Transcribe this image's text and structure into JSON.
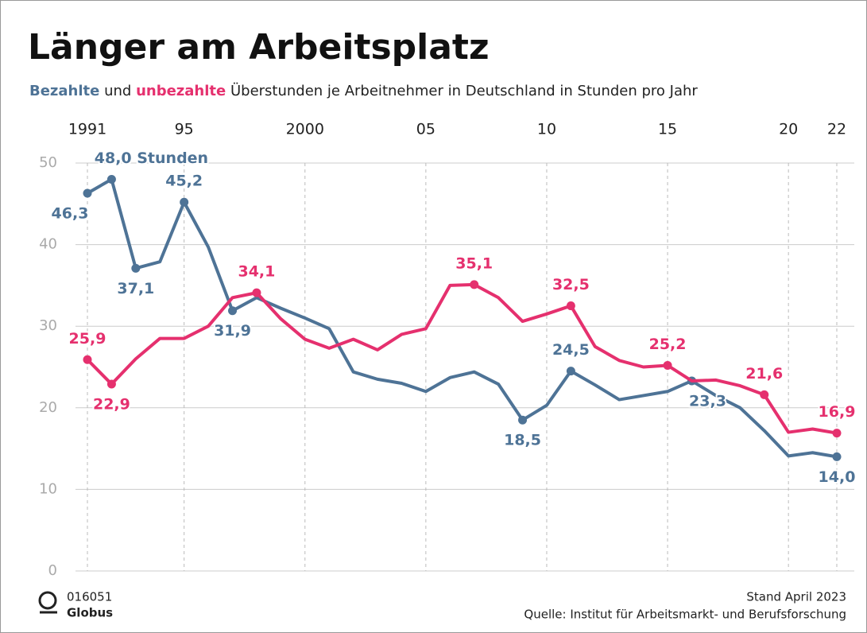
{
  "chart_data": {
    "type": "line",
    "title": "Länger am Arbeitsplatz",
    "subtitle_joiner": "und",
    "subtitle": "Überstunden je Arbeitnehmer in Deutschland in Stunden pro Jahr",
    "x": [
      1991,
      1992,
      1993,
      1994,
      1995,
      1996,
      1997,
      1998,
      1999,
      2000,
      2001,
      2002,
      2003,
      2004,
      2005,
      2006,
      2007,
      2008,
      2009,
      2010,
      2011,
      2012,
      2013,
      2014,
      2015,
      2016,
      2017,
      2018,
      2019,
      2020,
      2021,
      2022
    ],
    "series": [
      {
        "name": "Bezahlte",
        "color": "#4e7396",
        "values": [
          46.3,
          48.0,
          37.1,
          37.9,
          45.2,
          39.7,
          31.9,
          33.5,
          32.2,
          31.0,
          29.7,
          24.4,
          23.5,
          23.0,
          22.0,
          23.7,
          24.4,
          22.9,
          18.5,
          20.3,
          24.5,
          22.8,
          21.0,
          21.5,
          22.0,
          23.3,
          21.5,
          20.0,
          17.2,
          14.1,
          14.5,
          14.0
        ],
        "value_labels": [
          "46,3",
          "48,0 Stunden",
          "37,1",
          null,
          "45,2",
          null,
          "31,9",
          null,
          null,
          null,
          null,
          null,
          null,
          null,
          null,
          null,
          null,
          null,
          "18,5",
          null,
          "24,5",
          null,
          null,
          null,
          null,
          "23,3",
          null,
          null,
          null,
          null,
          null,
          "14,0"
        ]
      },
      {
        "name": "unbezahlte",
        "color": "#e5306e",
        "values": [
          25.9,
          22.9,
          26.0,
          28.5,
          28.5,
          30.0,
          33.5,
          34.1,
          30.9,
          28.4,
          27.3,
          28.4,
          27.1,
          29.0,
          29.7,
          35.0,
          35.1,
          33.5,
          30.6,
          31.5,
          32.5,
          27.5,
          25.8,
          25.0,
          25.2,
          23.3,
          23.4,
          22.7,
          21.6,
          17.0,
          17.4,
          16.9
        ],
        "value_labels": [
          "25,9",
          "22,9",
          null,
          null,
          null,
          null,
          null,
          "34,1",
          null,
          null,
          null,
          null,
          null,
          null,
          null,
          null,
          "35,1",
          null,
          null,
          null,
          "32,5",
          null,
          null,
          null,
          "25,2",
          null,
          null,
          null,
          "21,6",
          null,
          null,
          "16,9"
        ]
      }
    ],
    "xlim": [
      1991,
      2022
    ],
    "xticks": [
      1991,
      {
        "value": 1995,
        "label": "95"
      },
      2000,
      {
        "value": 2005,
        "label": "05"
      },
      {
        "value": 2010,
        "label": "10"
      },
      {
        "value": 2015,
        "label": "15"
      },
      {
        "value": 2020,
        "label": "20"
      },
      {
        "value": 2022,
        "label": "22"
      }
    ],
    "ylim": [
      0,
      50
    ],
    "yticks": [
      0,
      10,
      20,
      30,
      40,
      50
    ],
    "grid": true,
    "code": "016051",
    "brand": "Globus",
    "date_note": "Stand April 2023",
    "source": "Quelle: Institut für Arbeitsmarkt- und Berufsforschung"
  }
}
